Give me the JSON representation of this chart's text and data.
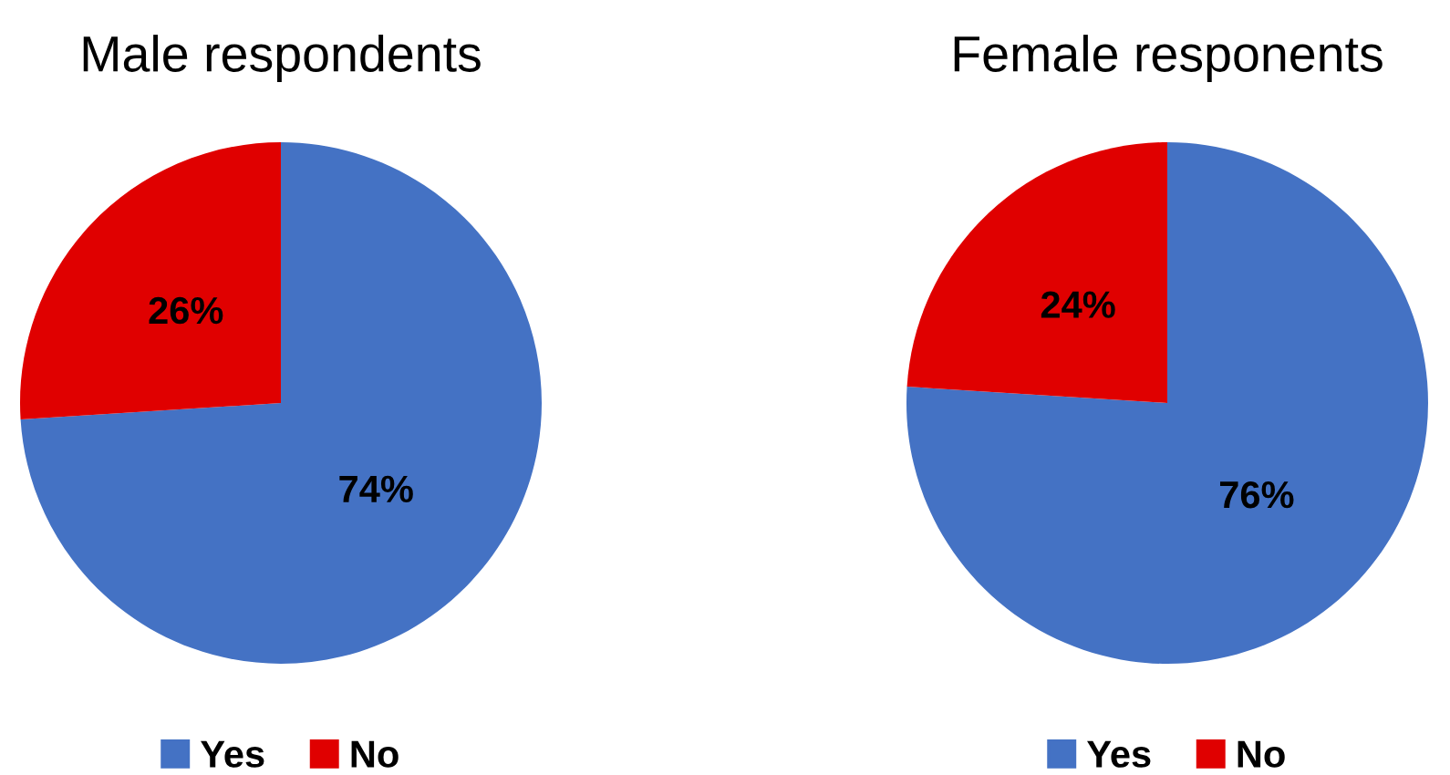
{
  "chart_data": [
    {
      "type": "pie",
      "title": "Male respondents",
      "categories": [
        "Yes",
        "No"
      ],
      "values": [
        74,
        26
      ],
      "colors": [
        "#4472c4",
        "#e00000"
      ],
      "value_labels": [
        "74%",
        "26%"
      ],
      "legend": "bottom"
    },
    {
      "type": "pie",
      "title": "Female responents",
      "categories": [
        "Yes",
        "No"
      ],
      "values": [
        76,
        24
      ],
      "colors": [
        "#4472c4",
        "#e00000"
      ],
      "value_labels": [
        "76%",
        "24%"
      ],
      "legend": "bottom"
    }
  ]
}
